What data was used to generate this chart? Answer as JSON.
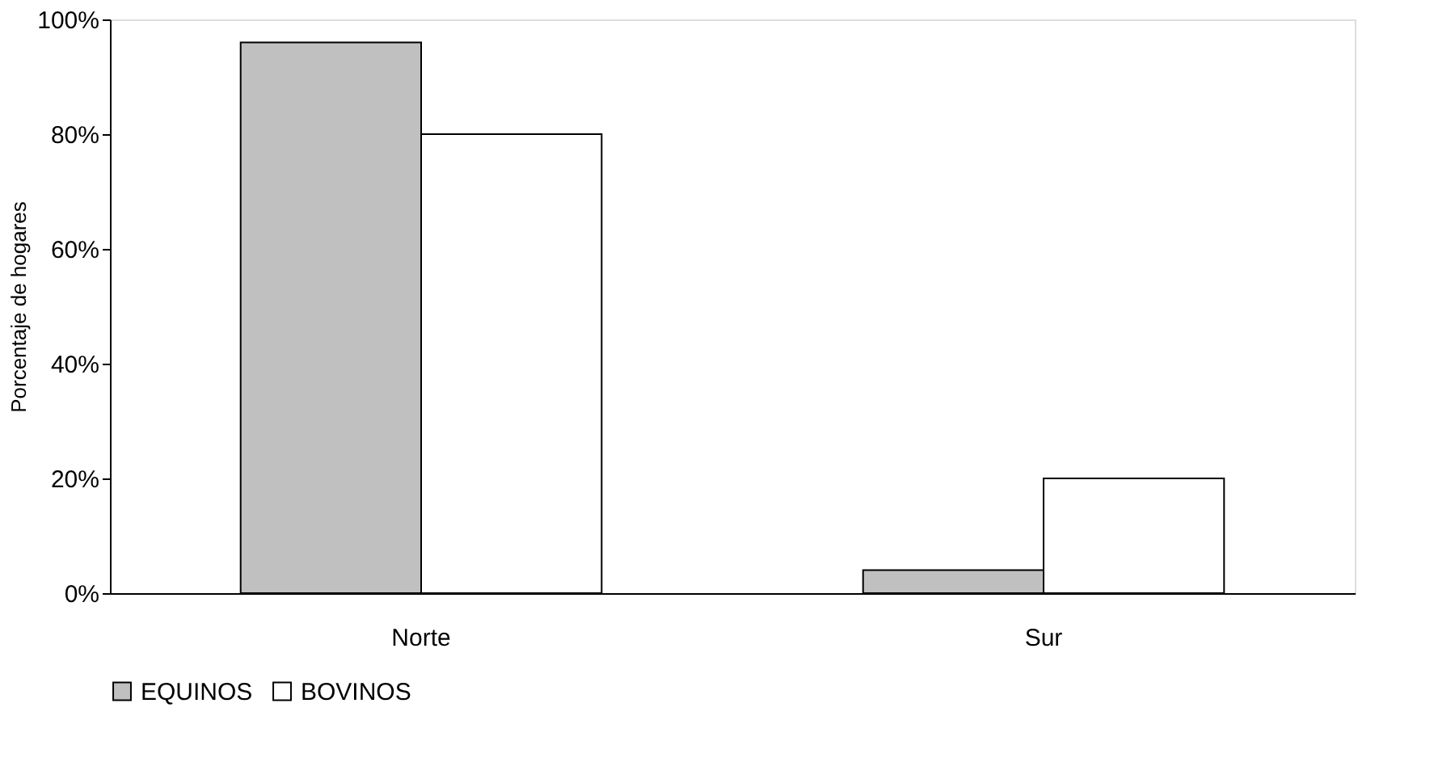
{
  "chart_data": {
    "type": "bar",
    "ylabel": "Porcentaje de hogares",
    "categories": [
      "Norte",
      "Sur"
    ],
    "series": [
      {
        "name": "EQUINOS",
        "color": "#c0c0c0",
        "values": [
          96,
          4
        ]
      },
      {
        "name": "BOVINOS",
        "color": "#ffffff",
        "values": [
          80,
          20
        ]
      }
    ],
    "ylim": [
      0,
      100
    ],
    "yticks": [
      {
        "value": 0,
        "label": "0%"
      },
      {
        "value": 20,
        "label": "20%"
      },
      {
        "value": 40,
        "label": "40%"
      },
      {
        "value": 60,
        "label": "60%"
      },
      {
        "value": 80,
        "label": "80%"
      },
      {
        "value": 100,
        "label": "100%"
      }
    ],
    "grid": false,
    "legend": "bottom"
  }
}
